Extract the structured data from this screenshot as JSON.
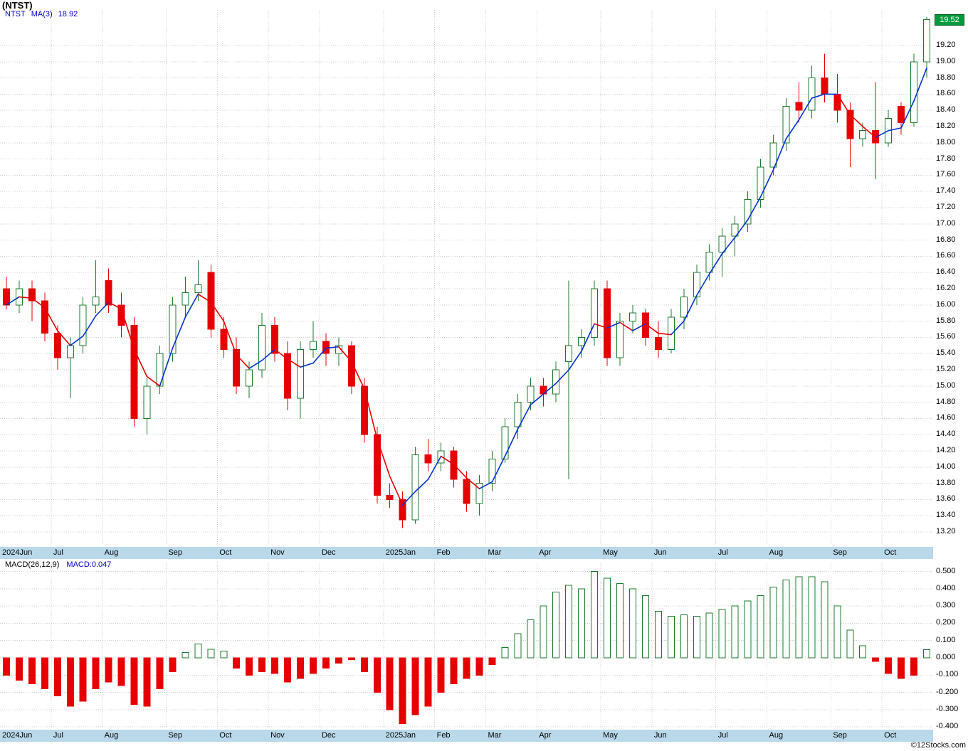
{
  "title": "(NTST)",
  "watermark": "©12Stocks.com",
  "last_price_label": "19.52",
  "last_price": 19.52,
  "main_legend": {
    "symbol": "NTST",
    "ma_label": "MA(3)",
    "ma_value": "18.92"
  },
  "macd_legend": {
    "label": "MACD(26,12,9)",
    "value_label": "MACD:0.047"
  },
  "colors": {
    "up": "#1d7a2c",
    "down": "#e60000",
    "ma_up": "#0033cc",
    "ma_down": "#e60000",
    "band": "#b9d9ea",
    "grid": "#cfcfcf",
    "tag_bg": "#009a3c",
    "legend_blue": "#0000cc"
  },
  "chart_data": [
    {
      "type": "candlestick",
      "title": "NTST weekly price with MA(3)",
      "legend": [
        "NTST",
        "MA(3) 18.92"
      ],
      "ylim": [
        13.05,
        19.66
      ],
      "yticks": [
        "19.20",
        "19.00",
        "18.80",
        "18.60",
        "18.40",
        "18.20",
        "18.00",
        "17.80",
        "17.60",
        "17.40",
        "17.20",
        "17.00",
        "16.80",
        "16.60",
        "16.40",
        "16.20",
        "16.00",
        "15.80",
        "15.60",
        "15.40",
        "15.20",
        "15.00",
        "14.80",
        "14.60",
        "14.40",
        "14.20",
        "14.00",
        "13.80",
        "13.60",
        "13.40",
        "13.20"
      ],
      "last_price": 19.52,
      "x_labels": [
        {
          "label": "2024Jun",
          "i": 0
        },
        {
          "label": "Jul",
          "i": 4
        },
        {
          "label": "Aug",
          "i": 8
        },
        {
          "label": "Sep",
          "i": 13
        },
        {
          "label": "Oct",
          "i": 17
        },
        {
          "label": "Nov",
          "i": 21
        },
        {
          "label": "Dec",
          "i": 25
        },
        {
          "label": "2025Jan",
          "i": 30
        },
        {
          "label": "Feb",
          "i": 34
        },
        {
          "label": "Mar",
          "i": 38
        },
        {
          "label": "Apr",
          "i": 42
        },
        {
          "label": "May",
          "i": 47
        },
        {
          "label": "Jun",
          "i": 51
        },
        {
          "label": "Jul",
          "i": 56
        },
        {
          "label": "Aug",
          "i": 60
        },
        {
          "label": "Sep",
          "i": 65
        },
        {
          "label": "Oct",
          "i": 69
        }
      ],
      "ohlc": [
        [
          16.2,
          16.35,
          15.95,
          16.0
        ],
        [
          16.0,
          16.3,
          15.9,
          16.2
        ],
        [
          16.2,
          16.3,
          15.8,
          16.05
        ],
        [
          16.05,
          16.15,
          15.55,
          15.65
        ],
        [
          15.65,
          15.75,
          15.2,
          15.35
        ],
        [
          15.35,
          15.6,
          14.85,
          15.5
        ],
        [
          15.5,
          16.1,
          15.4,
          16.0
        ],
        [
          16.0,
          16.55,
          15.9,
          16.1
        ],
        [
          16.3,
          16.45,
          15.9,
          16.0
        ],
        [
          16.0,
          16.15,
          15.6,
          15.75
        ],
        [
          15.75,
          15.85,
          14.5,
          14.6
        ],
        [
          14.6,
          15.1,
          14.4,
          15.0
        ],
        [
          15.0,
          15.5,
          14.9,
          15.4
        ],
        [
          15.4,
          16.1,
          15.3,
          16.0
        ],
        [
          16.0,
          16.35,
          15.85,
          16.15
        ],
        [
          16.15,
          16.55,
          16.05,
          16.25
        ],
        [
          16.4,
          16.5,
          15.6,
          15.7
        ],
        [
          15.7,
          15.85,
          15.35,
          15.45
        ],
        [
          15.45,
          15.6,
          14.9,
          15.0
        ],
        [
          15.0,
          15.3,
          14.85,
          15.2
        ],
        [
          15.2,
          15.9,
          15.1,
          15.75
        ],
        [
          15.75,
          15.85,
          15.3,
          15.4
        ],
        [
          15.4,
          15.55,
          14.7,
          14.85
        ],
        [
          14.85,
          15.55,
          14.6,
          15.45
        ],
        [
          15.45,
          15.8,
          15.35,
          15.55
        ],
        [
          15.55,
          15.65,
          15.25,
          15.4
        ],
        [
          15.4,
          15.6,
          15.25,
          15.5
        ],
        [
          15.5,
          15.55,
          14.9,
          15.0
        ],
        [
          15.0,
          15.1,
          14.3,
          14.4
        ],
        [
          14.4,
          14.5,
          13.55,
          13.65
        ],
        [
          13.65,
          13.8,
          13.5,
          13.6
        ],
        [
          13.6,
          13.7,
          13.25,
          13.35
        ],
        [
          13.35,
          14.25,
          13.3,
          14.15
        ],
        [
          14.15,
          14.35,
          13.95,
          14.05
        ],
        [
          14.05,
          14.3,
          13.95,
          14.2
        ],
        [
          14.2,
          14.25,
          13.75,
          13.85
        ],
        [
          13.85,
          13.95,
          13.45,
          13.55
        ],
        [
          13.55,
          13.9,
          13.4,
          13.8
        ],
        [
          13.8,
          14.2,
          13.7,
          14.1
        ],
        [
          14.1,
          14.6,
          14.05,
          14.5
        ],
        [
          14.5,
          14.9,
          14.35,
          14.8
        ],
        [
          14.8,
          15.1,
          14.7,
          15.0
        ],
        [
          15.0,
          15.1,
          14.75,
          14.9
        ],
        [
          14.9,
          15.3,
          14.8,
          15.2
        ],
        [
          15.3,
          16.3,
          13.85,
          15.5
        ],
        [
          15.5,
          15.7,
          15.35,
          15.6
        ],
        [
          15.6,
          16.3,
          15.5,
          16.2
        ],
        [
          16.2,
          16.3,
          15.25,
          15.35
        ],
        [
          15.35,
          15.9,
          15.25,
          15.8
        ],
        [
          15.8,
          16.0,
          15.65,
          15.9
        ],
        [
          15.9,
          15.95,
          15.5,
          15.6
        ],
        [
          15.6,
          15.8,
          15.35,
          15.45
        ],
        [
          15.45,
          15.95,
          15.4,
          15.85
        ],
        [
          15.85,
          16.2,
          15.7,
          16.1
        ],
        [
          16.1,
          16.5,
          16.0,
          16.4
        ],
        [
          16.4,
          16.75,
          16.3,
          16.65
        ],
        [
          16.65,
          16.95,
          16.35,
          16.85
        ],
        [
          16.85,
          17.1,
          16.6,
          17.0
        ],
        [
          17.0,
          17.4,
          16.9,
          17.3
        ],
        [
          17.3,
          17.8,
          17.2,
          17.7
        ],
        [
          17.7,
          18.1,
          17.6,
          18.0
        ],
        [
          18.0,
          18.55,
          17.9,
          18.45
        ],
        [
          18.5,
          18.75,
          18.25,
          18.4
        ],
        [
          18.4,
          18.95,
          18.3,
          18.8
        ],
        [
          18.8,
          19.1,
          18.5,
          18.6
        ],
        [
          18.6,
          18.85,
          18.25,
          18.4
        ],
        [
          18.4,
          18.5,
          17.7,
          18.05
        ],
        [
          18.05,
          18.25,
          17.95,
          18.15
        ],
        [
          18.15,
          18.75,
          17.55,
          18.0
        ],
        [
          18.0,
          18.4,
          17.95,
          18.3
        ],
        [
          18.45,
          18.5,
          18.1,
          18.25
        ],
        [
          18.25,
          19.1,
          18.2,
          19.0
        ],
        [
          19.0,
          19.55,
          18.8,
          19.52
        ]
      ]
    },
    {
      "type": "bar",
      "title": "MACD(26,12,9) histogram",
      "ylim": [
        -0.45,
        0.55
      ],
      "yticks": [
        "0.500",
        "0.400",
        "0.300",
        "0.200",
        "0.100",
        "0.000",
        "-0.100",
        "-0.200",
        "-0.300",
        "-0.400"
      ],
      "last_value": 0.047,
      "values": [
        -0.1,
        -0.13,
        -0.15,
        -0.18,
        -0.22,
        -0.28,
        -0.25,
        -0.18,
        -0.14,
        -0.16,
        -0.27,
        -0.28,
        -0.18,
        -0.08,
        0.03,
        0.08,
        0.05,
        0.04,
        -0.06,
        -0.1,
        -0.08,
        -0.09,
        -0.14,
        -0.12,
        -0.09,
        -0.06,
        -0.03,
        -0.01,
        -0.08,
        -0.2,
        -0.3,
        -0.38,
        -0.33,
        -0.28,
        -0.2,
        -0.15,
        -0.12,
        -0.1,
        -0.04,
        0.06,
        0.14,
        0.22,
        0.3,
        0.38,
        0.42,
        0.4,
        0.5,
        0.46,
        0.43,
        0.4,
        0.36,
        0.27,
        0.24,
        0.25,
        0.24,
        0.26,
        0.28,
        0.3,
        0.33,
        0.36,
        0.41,
        0.45,
        0.47,
        0.47,
        0.44,
        0.3,
        0.16,
        0.07,
        -0.02,
        -0.09,
        -0.12,
        -0.1,
        0.047
      ]
    }
  ]
}
